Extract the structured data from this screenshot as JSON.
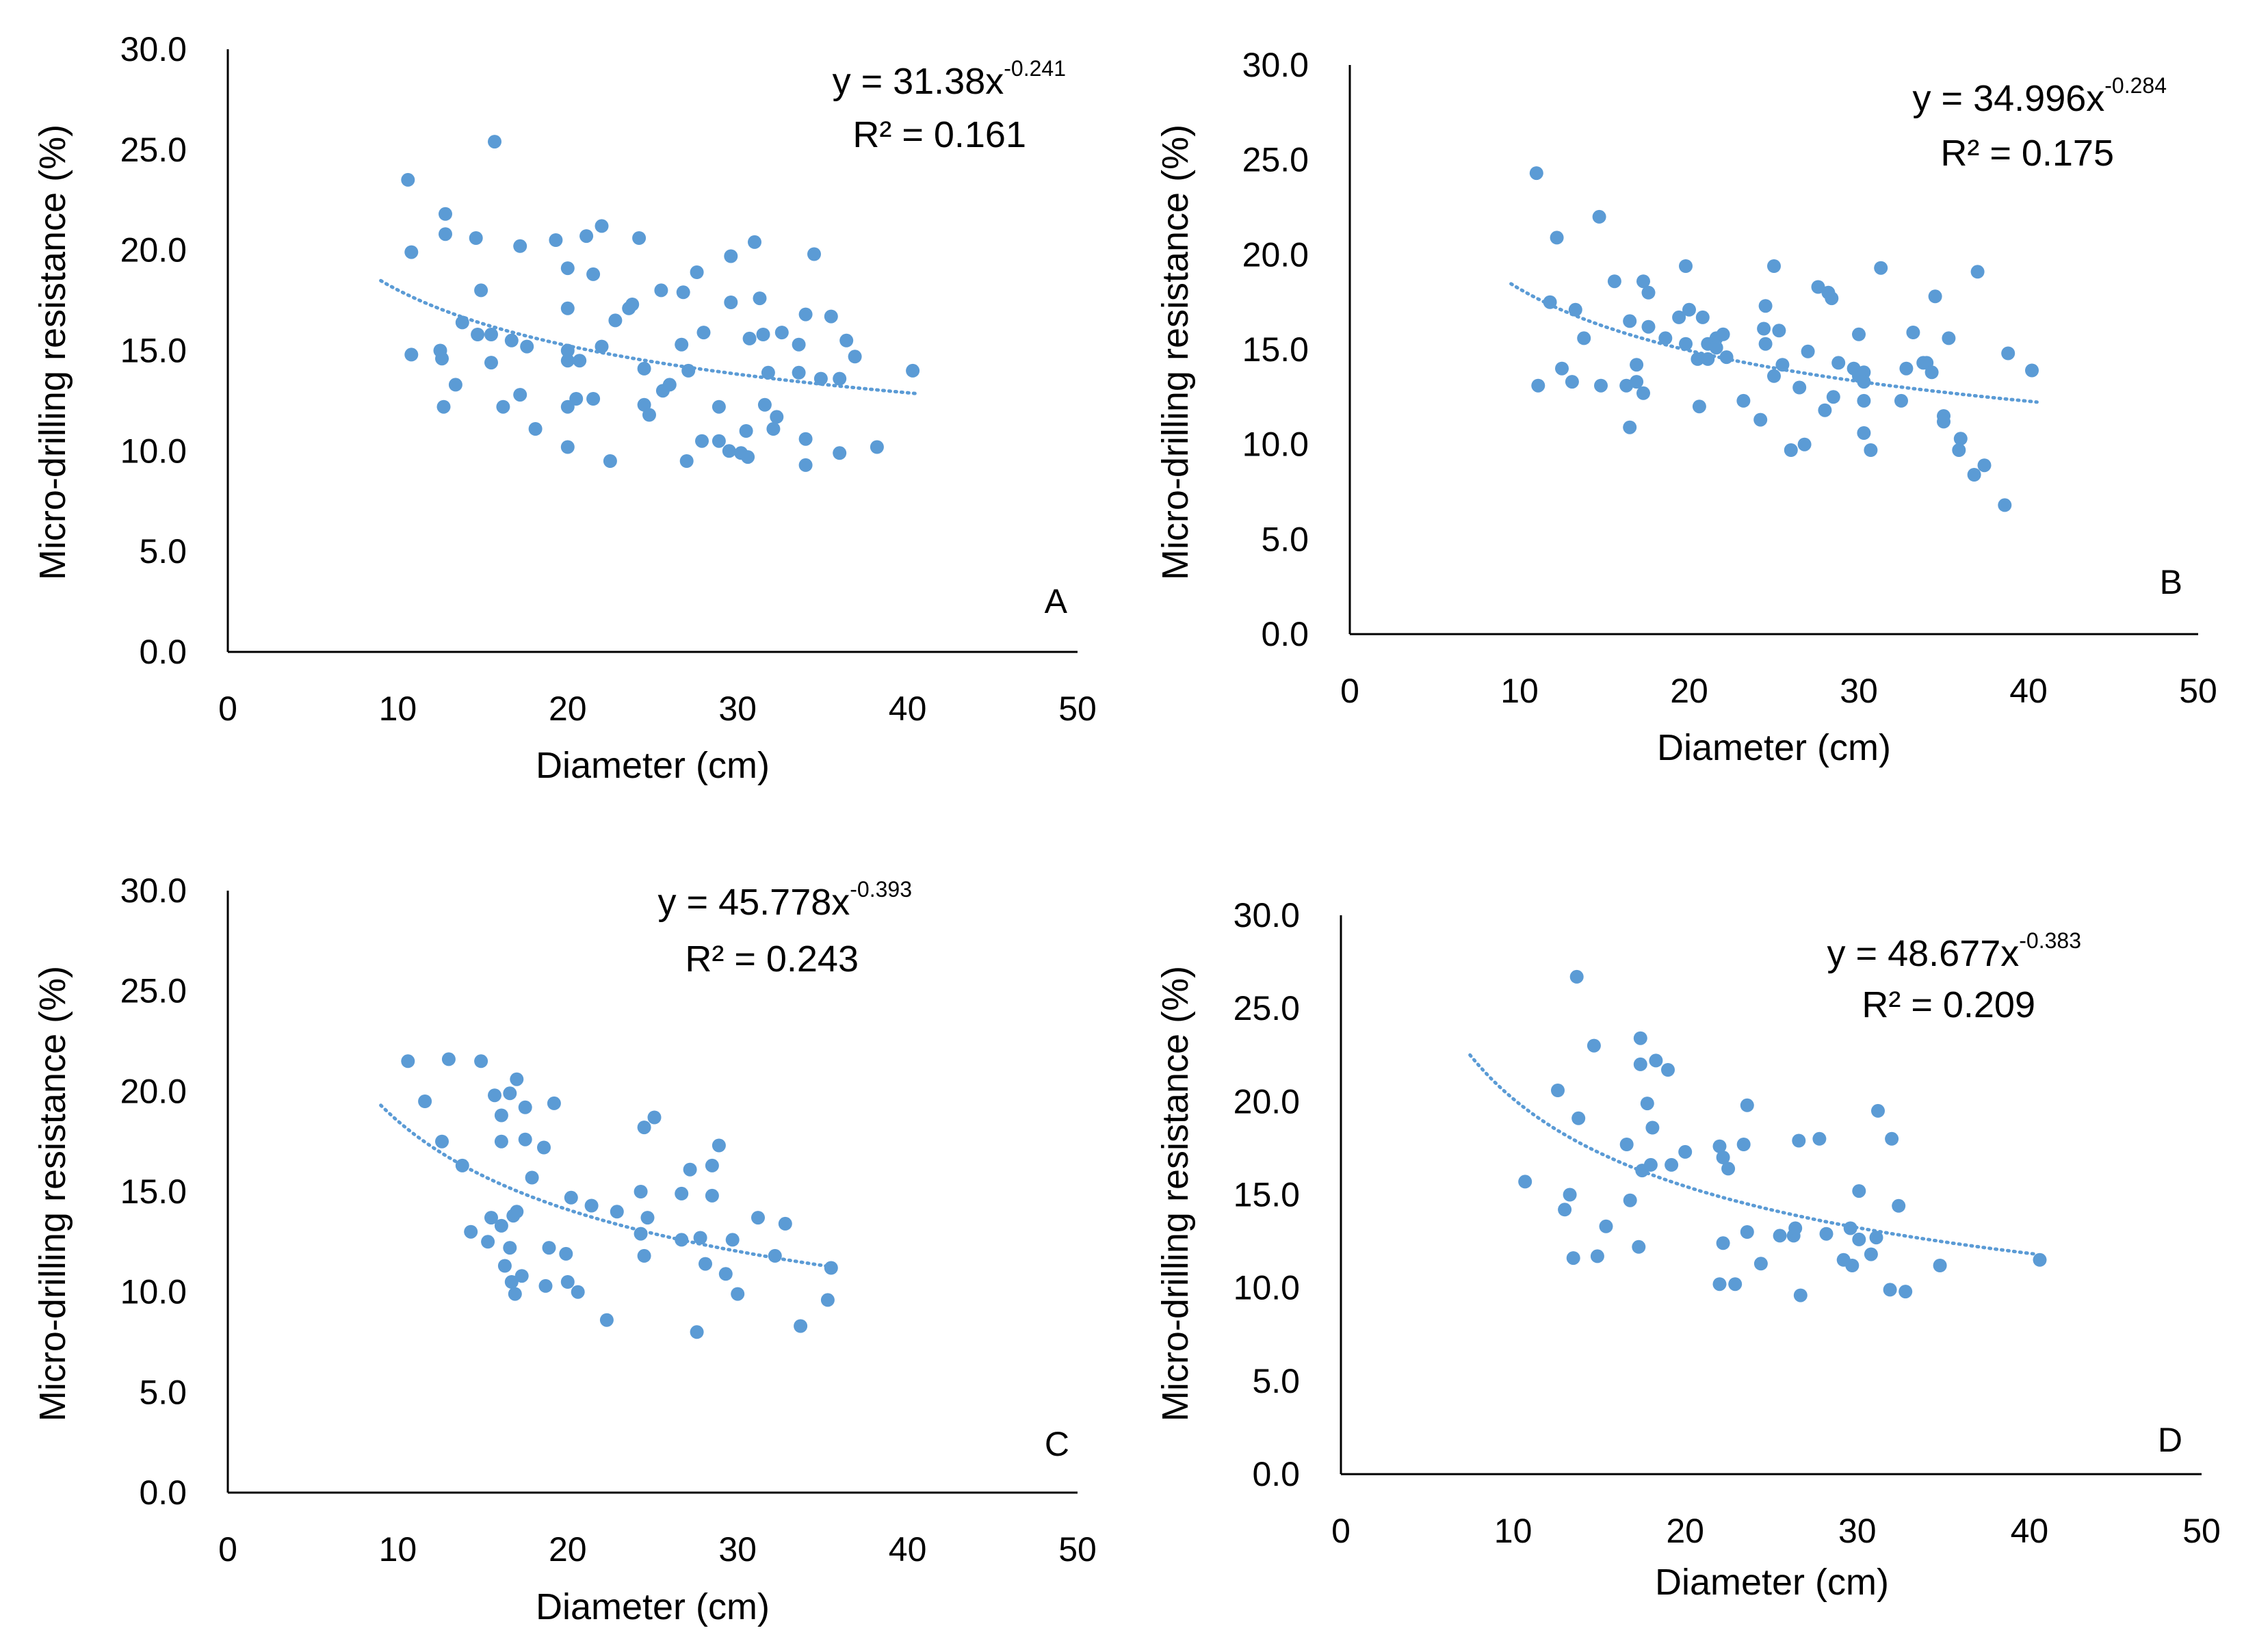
{
  "colors": {
    "point": "#5b9bd5",
    "trend": "#5b9bd5",
    "axis": "#000000"
  },
  "chart_data": [
    {
      "type": "scatter",
      "panel": "A",
      "xlabel": "Diameter (cm)",
      "ylabel": "Micro-drilling resistance (%)",
      "xlim": [
        0,
        50
      ],
      "ylim": [
        0,
        30
      ],
      "xticks": [
        "0",
        "10",
        "20",
        "30",
        "40",
        "50"
      ],
      "yticks": [
        "0.0",
        "5.0",
        "10.0",
        "15.0",
        "20.0",
        "25.0",
        "30.0"
      ],
      "grid": false,
      "trendline": {
        "type": "power",
        "a": 31.38,
        "b": -0.241,
        "x_range": [
          9,
          40.5
        ]
      },
      "equation": {
        "prefix": "y = 31.38x",
        "exponent": "-0.241",
        "r2": "R² = 0.161"
      },
      "points": [
        [
          10.6,
          23.5
        ],
        [
          10.8,
          19.9
        ],
        [
          10.8,
          14.8
        ],
        [
          12.5,
          15.0
        ],
        [
          12.6,
          14.6
        ],
        [
          12.7,
          12.2
        ],
        [
          12.8,
          21.8
        ],
        [
          12.8,
          20.8
        ],
        [
          13.4,
          13.3
        ],
        [
          13.8,
          16.4
        ],
        [
          14.6,
          20.6
        ],
        [
          14.7,
          15.8
        ],
        [
          14.9,
          18.0
        ],
        [
          15.5,
          15.8
        ],
        [
          15.5,
          14.4
        ],
        [
          15.7,
          25.4
        ],
        [
          16.2,
          12.2
        ],
        [
          16.7,
          15.5
        ],
        [
          17.2,
          20.2
        ],
        [
          17.2,
          12.8
        ],
        [
          17.6,
          15.2
        ],
        [
          18.1,
          11.1
        ],
        [
          19.3,
          20.5
        ],
        [
          20.0,
          19.1
        ],
        [
          20.0,
          17.1
        ],
        [
          20.0,
          15.0
        ],
        [
          20.0,
          14.5
        ],
        [
          20.0,
          12.2
        ],
        [
          20.0,
          10.2
        ],
        [
          20.5,
          12.6
        ],
        [
          20.7,
          14.5
        ],
        [
          21.1,
          20.7
        ],
        [
          21.5,
          18.8
        ],
        [
          21.5,
          12.6
        ],
        [
          22.0,
          21.2
        ],
        [
          22.0,
          15.2
        ],
        [
          22.5,
          9.5
        ],
        [
          22.8,
          16.5
        ],
        [
          23.6,
          17.1
        ],
        [
          23.8,
          17.3
        ],
        [
          24.2,
          20.6
        ],
        [
          24.5,
          14.1
        ],
        [
          24.5,
          12.3
        ],
        [
          24.8,
          11.8
        ],
        [
          25.5,
          18.0
        ],
        [
          25.6,
          13.0
        ],
        [
          26.0,
          13.3
        ],
        [
          26.7,
          15.3
        ],
        [
          26.8,
          17.9
        ],
        [
          27.0,
          9.5
        ],
        [
          27.1,
          14.0
        ],
        [
          27.6,
          18.9
        ],
        [
          27.9,
          10.5
        ],
        [
          28.0,
          15.9
        ],
        [
          28.9,
          12.2
        ],
        [
          28.9,
          10.5
        ],
        [
          29.5,
          10.0
        ],
        [
          29.6,
          19.7
        ],
        [
          29.6,
          17.4
        ],
        [
          30.2,
          9.9
        ],
        [
          30.5,
          11.0
        ],
        [
          30.6,
          9.7
        ],
        [
          30.7,
          15.6
        ],
        [
          31.0,
          20.4
        ],
        [
          31.3,
          17.6
        ],
        [
          31.5,
          15.8
        ],
        [
          31.6,
          12.3
        ],
        [
          31.8,
          13.9
        ],
        [
          32.1,
          11.1
        ],
        [
          32.3,
          11.7
        ],
        [
          32.6,
          15.9
        ],
        [
          33.6,
          15.3
        ],
        [
          33.6,
          13.9
        ],
        [
          34.0,
          16.8
        ],
        [
          34.0,
          10.6
        ],
        [
          34.0,
          9.3
        ],
        [
          34.5,
          19.8
        ],
        [
          34.9,
          13.6
        ],
        [
          35.5,
          16.7
        ],
        [
          36.0,
          13.6
        ],
        [
          36.0,
          9.9
        ],
        [
          36.4,
          15.5
        ],
        [
          36.9,
          14.7
        ],
        [
          38.2,
          10.2
        ],
        [
          40.3,
          14.0
        ]
      ]
    },
    {
      "type": "scatter",
      "panel": "B",
      "xlabel": "Diameter (cm)",
      "ylabel": "Micro-drilling resistance (%)",
      "xlim": [
        0,
        50
      ],
      "ylim": [
        0,
        30
      ],
      "xticks": [
        "0",
        "10",
        "20",
        "30",
        "40",
        "50"
      ],
      "yticks": [
        "0.0",
        "5.0",
        "10.0",
        "15.0",
        "20.0",
        "25.0",
        "30.0"
      ],
      "grid": false,
      "trendline": {
        "type": "power",
        "a": 34.996,
        "b": -0.284,
        "x_range": [
          9.5,
          40.5
        ]
      },
      "equation": {
        "prefix": "y = 34.996x",
        "exponent": "-0.284",
        "r2": "R² = 0.175"
      },
      "points": [
        [
          11.0,
          24.3
        ],
        [
          11.1,
          13.1
        ],
        [
          11.8,
          17.5
        ],
        [
          12.2,
          20.9
        ],
        [
          12.5,
          14.0
        ],
        [
          13.1,
          13.3
        ],
        [
          13.3,
          17.1
        ],
        [
          13.8,
          15.6
        ],
        [
          14.7,
          22.0
        ],
        [
          14.8,
          13.1
        ],
        [
          15.6,
          18.6
        ],
        [
          16.3,
          13.1
        ],
        [
          16.5,
          16.5
        ],
        [
          16.5,
          10.9
        ],
        [
          16.9,
          14.2
        ],
        [
          16.9,
          13.3
        ],
        [
          17.3,
          18.6
        ],
        [
          17.3,
          12.7
        ],
        [
          17.6,
          16.2
        ],
        [
          17.6,
          18.0
        ],
        [
          18.6,
          15.6
        ],
        [
          19.4,
          16.7
        ],
        [
          19.8,
          19.4
        ],
        [
          19.8,
          15.3
        ],
        [
          20.0,
          17.1
        ],
        [
          20.5,
          14.5
        ],
        [
          20.6,
          12.0
        ],
        [
          20.8,
          16.7
        ],
        [
          21.1,
          15.3
        ],
        [
          21.1,
          14.5
        ],
        [
          21.6,
          15.6
        ],
        [
          21.6,
          15.1
        ],
        [
          22.0,
          15.8
        ],
        [
          22.2,
          14.6
        ],
        [
          23.2,
          12.3
        ],
        [
          24.2,
          11.3
        ],
        [
          24.4,
          16.1
        ],
        [
          24.5,
          17.3
        ],
        [
          24.5,
          15.3
        ],
        [
          25.0,
          13.6
        ],
        [
          25.0,
          19.4
        ],
        [
          25.3,
          16.0
        ],
        [
          25.5,
          14.2
        ],
        [
          26.0,
          9.7
        ],
        [
          26.5,
          13.0
        ],
        [
          26.8,
          10.0
        ],
        [
          27.0,
          14.9
        ],
        [
          27.6,
          18.3
        ],
        [
          28.0,
          11.8
        ],
        [
          28.2,
          18.0
        ],
        [
          28.4,
          17.7
        ],
        [
          28.5,
          12.5
        ],
        [
          28.8,
          14.3
        ],
        [
          29.7,
          14.0
        ],
        [
          30.0,
          15.8
        ],
        [
          30.0,
          13.6
        ],
        [
          30.3,
          13.8
        ],
        [
          30.3,
          13.3
        ],
        [
          30.3,
          10.6
        ],
        [
          30.3,
          12.3
        ],
        [
          30.7,
          9.7
        ],
        [
          31.3,
          19.3
        ],
        [
          32.5,
          12.3
        ],
        [
          32.8,
          14.0
        ],
        [
          33.2,
          15.9
        ],
        [
          33.8,
          14.3
        ],
        [
          34.0,
          14.3
        ],
        [
          34.3,
          13.8
        ],
        [
          34.5,
          17.8
        ],
        [
          35.0,
          11.5
        ],
        [
          35.0,
          11.2
        ],
        [
          35.3,
          15.6
        ],
        [
          35.9,
          9.7
        ],
        [
          36.0,
          10.3
        ],
        [
          36.8,
          8.4
        ],
        [
          37.0,
          19.1
        ],
        [
          37.4,
          8.9
        ],
        [
          38.6,
          6.8
        ],
        [
          38.8,
          14.8
        ],
        [
          40.2,
          13.9
        ]
      ]
    },
    {
      "type": "scatter",
      "panel": "C",
      "xlabel": "Diameter (cm)",
      "ylabel": "Micro-drilling resistance (%)",
      "xlim": [
        0,
        50
      ],
      "ylim": [
        0,
        30
      ],
      "xticks": [
        "0",
        "10",
        "20",
        "30",
        "40",
        "50"
      ],
      "yticks": [
        "0.0",
        "5.0",
        "10.0",
        "15.0",
        "20.0",
        "25.0",
        "30.0"
      ],
      "grid": false,
      "trendline": {
        "type": "power",
        "a": 45.778,
        "b": -0.393,
        "x_range": [
          9,
          35.5
        ]
      },
      "equation": {
        "prefix": "y = 45.778x",
        "exponent": "-0.393",
        "r2": "R² = 0.243"
      },
      "points": [
        [
          10.6,
          21.5
        ],
        [
          11.6,
          19.5
        ],
        [
          12.6,
          17.5
        ],
        [
          13.0,
          21.6
        ],
        [
          13.8,
          16.3
        ],
        [
          14.3,
          13.0
        ],
        [
          14.9,
          21.5
        ],
        [
          15.3,
          12.5
        ],
        [
          15.5,
          13.7
        ],
        [
          15.7,
          19.8
        ],
        [
          16.1,
          18.8
        ],
        [
          16.1,
          17.5
        ],
        [
          16.1,
          13.3
        ],
        [
          16.3,
          11.3
        ],
        [
          16.6,
          19.9
        ],
        [
          16.6,
          12.2
        ],
        [
          16.7,
          10.5
        ],
        [
          16.8,
          13.8
        ],
        [
          16.9,
          9.9
        ],
        [
          17.0,
          14.0
        ],
        [
          17.0,
          20.6
        ],
        [
          17.3,
          10.8
        ],
        [
          17.5,
          17.6
        ],
        [
          17.5,
          19.2
        ],
        [
          17.9,
          15.7
        ],
        [
          18.6,
          17.2
        ],
        [
          18.7,
          10.3
        ],
        [
          18.9,
          12.2
        ],
        [
          19.2,
          19.4
        ],
        [
          19.9,
          11.9
        ],
        [
          20.0,
          10.5
        ],
        [
          20.2,
          14.7
        ],
        [
          20.6,
          10.0
        ],
        [
          21.4,
          14.3
        ],
        [
          22.3,
          8.6
        ],
        [
          22.9,
          14.0
        ],
        [
          24.3,
          15.0
        ],
        [
          24.3,
          12.9
        ],
        [
          24.5,
          18.2
        ],
        [
          24.5,
          11.8
        ],
        [
          24.7,
          13.7
        ],
        [
          25.1,
          18.7
        ],
        [
          26.7,
          14.9
        ],
        [
          26.7,
          12.6
        ],
        [
          27.2,
          16.1
        ],
        [
          27.6,
          8.0
        ],
        [
          27.8,
          12.7
        ],
        [
          28.1,
          11.4
        ],
        [
          28.5,
          16.3
        ],
        [
          28.5,
          14.8
        ],
        [
          28.9,
          17.3
        ],
        [
          29.3,
          10.9
        ],
        [
          29.7,
          12.6
        ],
        [
          30.0,
          9.9
        ],
        [
          31.2,
          13.7
        ],
        [
          32.2,
          11.8
        ],
        [
          32.8,
          13.4
        ],
        [
          33.7,
          8.3
        ],
        [
          35.3,
          9.6
        ],
        [
          35.5,
          11.2
        ]
      ]
    },
    {
      "type": "scatter",
      "panel": "D",
      "xlabel": "Diameter (cm)",
      "ylabel": "Micro-drilling resistance (%)",
      "xlim": [
        0,
        50
      ],
      "ylim": [
        0,
        30
      ],
      "xticks": [
        "0",
        "10",
        "20",
        "30",
        "40",
        "50"
      ],
      "yticks": [
        "0.0",
        "5.0",
        "10.0",
        "15.0",
        "20.0",
        "25.0",
        "30.0"
      ],
      "grid": false,
      "trendline": {
        "type": "power",
        "a": 48.677,
        "b": -0.383,
        "x_range": [
          7.5,
          40.5
        ]
      },
      "equation": {
        "prefix": "y = 48.677x",
        "exponent": "-0.383",
        "r2": "R² = 0.209"
      },
      "points": [
        [
          10.7,
          15.7
        ],
        [
          12.6,
          20.6
        ],
        [
          13.0,
          14.2
        ],
        [
          13.3,
          15.0
        ],
        [
          13.5,
          11.6
        ],
        [
          13.7,
          26.7
        ],
        [
          13.8,
          19.1
        ],
        [
          14.7,
          23.0
        ],
        [
          14.9,
          11.7
        ],
        [
          15.4,
          13.3
        ],
        [
          16.6,
          17.7
        ],
        [
          16.8,
          14.7
        ],
        [
          17.3,
          12.2
        ],
        [
          17.4,
          23.4
        ],
        [
          17.4,
          22.0
        ],
        [
          17.5,
          16.3
        ],
        [
          17.8,
          19.9
        ],
        [
          18.0,
          16.6
        ],
        [
          18.1,
          18.6
        ],
        [
          18.3,
          22.2
        ],
        [
          19.0,
          21.7
        ],
        [
          19.2,
          16.6
        ],
        [
          20.0,
          17.3
        ],
        [
          22.0,
          17.6
        ],
        [
          22.0,
          10.2
        ],
        [
          22.2,
          12.4
        ],
        [
          22.2,
          17.0
        ],
        [
          22.5,
          16.4
        ],
        [
          22.9,
          10.2
        ],
        [
          23.4,
          17.7
        ],
        [
          23.6,
          19.8
        ],
        [
          23.6,
          13.0
        ],
        [
          24.4,
          11.3
        ],
        [
          25.5,
          12.8
        ],
        [
          26.3,
          12.8
        ],
        [
          26.4,
          13.2
        ],
        [
          26.6,
          17.9
        ],
        [
          26.7,
          9.6
        ],
        [
          27.8,
          18.0
        ],
        [
          28.2,
          12.9
        ],
        [
          29.2,
          11.5
        ],
        [
          29.6,
          13.2
        ],
        [
          29.7,
          11.2
        ],
        [
          30.1,
          15.2
        ],
        [
          30.1,
          12.6
        ],
        [
          30.8,
          11.8
        ],
        [
          31.1,
          12.7
        ],
        [
          31.2,
          19.5
        ],
        [
          31.9,
          9.9
        ],
        [
          32.0,
          18.0
        ],
        [
          32.4,
          14.4
        ],
        [
          32.8,
          9.8
        ],
        [
          34.8,
          11.2
        ],
        [
          40.6,
          11.5
        ]
      ]
    }
  ]
}
